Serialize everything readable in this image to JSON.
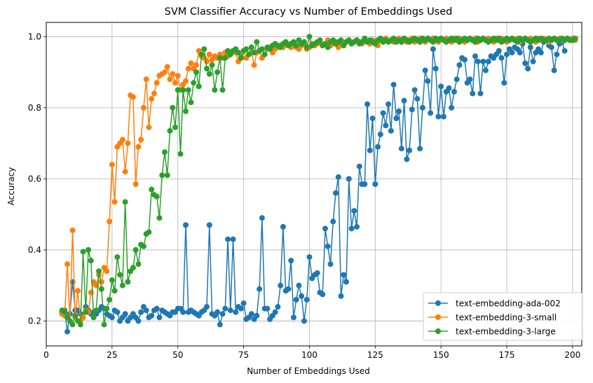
{
  "chart_data": {
    "type": "line",
    "title": "SVM Classifier Accuracy vs Number of Embeddings Used",
    "xlabel": "Number of Embeddings Used",
    "ylabel": "Accuracy",
    "xlim": [
      0,
      203.5
    ],
    "ylim": [
      0.13,
      1.04
    ],
    "xticks": [
      0,
      25,
      50,
      75,
      100,
      125,
      150,
      175,
      200
    ],
    "yticks": [
      0.2,
      0.4,
      0.6,
      0.8,
      1.0
    ],
    "ytick_labels": [
      "0.2",
      "0.4",
      "0.6",
      "0.8",
      "1.0"
    ],
    "grid": true,
    "legend_position": "lower-right",
    "series": [
      {
        "name": "text-embedding-ada-002",
        "color": "#1f77b4",
        "x_start": 6,
        "values": [
          0.225,
          0.23,
          0.17,
          0.22,
          0.31,
          0.23,
          0.23,
          0.22,
          0.21,
          0.24,
          0.23,
          0.22,
          0.225,
          0.22,
          0.23,
          0.24,
          0.235,
          0.22,
          0.215,
          0.21,
          0.23,
          0.225,
          0.2,
          0.21,
          0.22,
          0.2,
          0.21,
          0.22,
          0.21,
          0.2,
          0.225,
          0.24,
          0.23,
          0.21,
          0.215,
          0.23,
          0.235,
          0.21,
          0.23,
          0.225,
          0.22,
          0.215,
          0.225,
          0.225,
          0.235,
          0.235,
          0.225,
          0.47,
          0.225,
          0.23,
          0.225,
          0.22,
          0.215,
          0.225,
          0.23,
          0.24,
          0.47,
          0.22,
          0.215,
          0.225,
          0.19,
          0.22,
          0.235,
          0.43,
          0.23,
          0.43,
          0.225,
          0.24,
          0.235,
          0.25,
          0.205,
          0.21,
          0.22,
          0.205,
          0.215,
          0.29,
          0.49,
          0.235,
          0.235,
          0.205,
          0.215,
          0.225,
          0.24,
          0.3,
          0.465,
          0.285,
          0.29,
          0.37,
          0.21,
          0.26,
          0.3,
          0.27,
          0.2,
          0.26,
          0.38,
          0.32,
          0.33,
          0.335,
          0.28,
          0.275,
          0.46,
          0.41,
          0.36,
          0.48,
          0.56,
          0.605,
          0.27,
          0.33,
          0.31,
          0.6,
          0.46,
          0.51,
          0.465,
          0.635,
          0.585,
          0.585,
          0.81,
          0.68,
          0.77,
          0.585,
          0.69,
          0.725,
          0.785,
          0.75,
          0.81,
          0.735,
          0.865,
          0.77,
          0.79,
          0.685,
          0.82,
          0.655,
          0.68,
          0.795,
          0.85,
          0.825,
          0.685,
          0.8,
          0.905,
          0.875,
          0.785,
          0.965,
          0.91,
          0.775,
          0.86,
          0.775,
          0.845,
          0.855,
          0.8,
          0.845,
          0.88,
          0.92,
          0.94,
          0.935,
          0.87,
          0.88,
          0.84,
          0.945,
          0.93,
          0.84,
          0.93,
          0.905,
          0.93,
          0.945,
          0.94,
          0.95,
          0.96,
          0.94,
          0.87,
          0.95,
          0.965,
          0.955,
          0.97,
          0.965,
          0.955,
          0.98,
          0.925,
          0.91,
          0.97,
          0.93,
          0.955,
          0.965,
          0.955,
          0.985,
          0.99,
          0.975,
          0.97,
          0.905,
          0.95,
          0.98,
          0.985,
          0.96
        ]
      },
      {
        "name": "text-embedding-3-small",
        "color": "#ff7f0e",
        "x_start": 6,
        "values": [
          0.22,
          0.215,
          0.36,
          0.2,
          0.455,
          0.21,
          0.285,
          0.2,
          0.21,
          0.23,
          0.225,
          0.28,
          0.31,
          0.3,
          0.33,
          0.31,
          0.35,
          0.34,
          0.48,
          0.64,
          0.535,
          0.69,
          0.7,
          0.71,
          0.62,
          0.7,
          0.835,
          0.83,
          0.585,
          0.69,
          0.71,
          0.8,
          0.88,
          0.745,
          0.825,
          0.84,
          0.87,
          0.89,
          0.895,
          0.9,
          0.915,
          0.88,
          0.895,
          0.87,
          0.89,
          0.85,
          0.865,
          0.875,
          0.91,
          0.925,
          0.91,
          0.92,
          0.96,
          0.945,
          0.94,
          0.93,
          0.95,
          0.935,
          0.945,
          0.94,
          0.95,
          0.94,
          0.955,
          0.945,
          0.95,
          0.96,
          0.955,
          0.93,
          0.945,
          0.96,
          0.94,
          0.95,
          0.955,
          0.92,
          0.955,
          0.96,
          0.94,
          0.95,
          0.965,
          0.97,
          0.955,
          0.965,
          0.97,
          0.975,
          0.97,
          0.98,
          0.975,
          0.97,
          0.975,
          0.97,
          0.965,
          0.975,
          0.98,
          0.965,
          0.97,
          0.98,
          0.975,
          0.98,
          0.985,
          0.975,
          0.98,
          0.99,
          0.975,
          0.98,
          0.985,
          0.97,
          0.98,
          0.975,
          0.985,
          0.99,
          0.98,
          0.985,
          0.99,
          0.985,
          0.98,
          0.99,
          0.985,
          0.98,
          0.99,
          0.985,
          0.975,
          0.99,
          0.985,
          0.995,
          0.985,
          0.99,
          0.985,
          0.99,
          0.995,
          0.985,
          0.99,
          0.985,
          0.99,
          0.995,
          0.985,
          0.99,
          0.995,
          0.99,
          0.985,
          0.995,
          0.99,
          0.995,
          0.99,
          0.985,
          0.995,
          0.99,
          0.995,
          0.99,
          0.985,
          0.995,
          0.99,
          0.995,
          0.99,
          0.985,
          0.99,
          0.995,
          0.99,
          0.995,
          0.985,
          0.99,
          0.995,
          0.99,
          0.995,
          0.99,
          0.985,
          0.995,
          0.99,
          0.995,
          0.99,
          0.985,
          0.99,
          0.995,
          0.99,
          0.995,
          0.985,
          0.99,
          0.995,
          0.99,
          0.995,
          0.99,
          0.985,
          0.995,
          0.99,
          0.995,
          0.99,
          0.985,
          0.99,
          0.995,
          0.99,
          0.995,
          0.99,
          0.99,
          0.995,
          0.99,
          0.995,
          0.99
        ]
      },
      {
        "name": "text-embedding-3-large",
        "color": "#2ca02c",
        "x_start": 6,
        "values": [
          0.23,
          0.225,
          0.21,
          0.2,
          0.19,
          0.215,
          0.2,
          0.19,
          0.395,
          0.225,
          0.4,
          0.37,
          0.21,
          0.23,
          0.34,
          0.29,
          0.19,
          0.235,
          0.26,
          0.315,
          0.285,
          0.38,
          0.33,
          0.3,
          0.535,
          0.31,
          0.34,
          0.35,
          0.4,
          0.36,
          0.415,
          0.41,
          0.445,
          0.45,
          0.57,
          0.555,
          0.55,
          0.49,
          0.61,
          0.675,
          0.61,
          0.735,
          0.8,
          0.745,
          0.85,
          0.67,
          0.85,
          0.79,
          0.85,
          0.815,
          0.87,
          0.9,
          0.86,
          0.95,
          0.965,
          0.91,
          0.895,
          0.92,
          0.85,
          0.9,
          0.94,
          0.85,
          0.94,
          0.96,
          0.95,
          0.96,
          0.965,
          0.955,
          0.94,
          0.96,
          0.965,
          0.95,
          0.97,
          0.955,
          0.985,
          0.96,
          0.965,
          0.95,
          0.97,
          0.965,
          0.975,
          0.98,
          0.975,
          0.97,
          0.98,
          0.985,
          0.975,
          0.98,
          0.985,
          0.975,
          0.99,
          0.98,
          0.985,
          0.97,
          1.0,
          0.975,
          0.98,
          0.985,
          0.99,
          0.975,
          0.98,
          0.97,
          0.985,
          0.99,
          0.98,
          0.985,
          0.99,
          0.975,
          0.985,
          0.99,
          0.98,
          0.985,
          0.99,
          0.98,
          0.985,
          0.995,
          0.985,
          0.99,
          0.985,
          0.98,
          0.99,
          0.995,
          0.985,
          0.99,
          0.985,
          0.99,
          0.995,
          0.985,
          0.99,
          0.985,
          0.995,
          0.99,
          0.985,
          0.99,
          0.995,
          0.99,
          0.985,
          0.995,
          0.99,
          0.995,
          0.99,
          0.985,
          0.995,
          0.99,
          0.995,
          0.99,
          0.985,
          0.99,
          0.995,
          0.99,
          0.995,
          0.985,
          0.99,
          0.995,
          0.99,
          0.995,
          0.99,
          0.985,
          0.995,
          0.99,
          0.995,
          0.99,
          0.985,
          0.99,
          0.995,
          0.99,
          0.995,
          0.985,
          0.99,
          0.995,
          0.99,
          0.995,
          0.99,
          0.985,
          0.995,
          0.99,
          0.995,
          0.99,
          0.985,
          0.99,
          0.995,
          0.99,
          0.995,
          0.99,
          0.99,
          0.995,
          0.99,
          0.995,
          0.99,
          0.99,
          0.995,
          0.99,
          0.995,
          0.99,
          0.99,
          0.995
        ]
      }
    ]
  }
}
